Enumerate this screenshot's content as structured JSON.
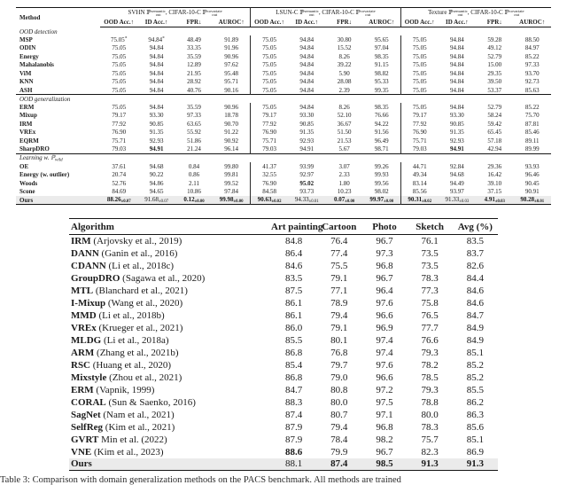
{
  "table1": {
    "method_header": "Method",
    "math": {
      "symbol": "ℙ",
      "sub": "out",
      "sup_semantic": "semantic",
      "sup_covariate": "covariate",
      "connector": ", CIFAR-10-C"
    },
    "groups": [
      {
        "name": "SVHN"
      },
      {
        "name": "LSUN-C"
      },
      {
        "name": "Texture"
      }
    ],
    "subheaders": [
      "OOD Acc.↑",
      "ID Acc.↑",
      "FPR↓",
      "AUROC↑"
    ],
    "sections": [
      {
        "label": "OOD detection",
        "rows": [
          {
            "m": "MSP",
            "v": [
              "75.05*",
              "94.84*",
              "48.49",
              "91.89",
              "75.05",
              "94.84",
              "30.80",
              "95.65",
              "75.05",
              "94.84",
              "59.28",
              "88.50"
            ]
          },
          {
            "m": "ODIN",
            "v": [
              "75.05",
              "94.84",
              "33.35",
              "91.96",
              "75.05",
              "94.84",
              "15.52",
              "97.04",
              "75.05",
              "94.84",
              "49.12",
              "84.97"
            ]
          },
          {
            "m": "Energy",
            "v": [
              "75.05",
              "94.84",
              "35.59",
              "90.96",
              "75.05",
              "94.84",
              "8.26",
              "98.35",
              "75.05",
              "94.84",
              "52.79",
              "85.22"
            ]
          },
          {
            "m": "Mahalanobis",
            "v": [
              "75.05",
              "94.84",
              "12.89",
              "97.62",
              "75.05",
              "94.84",
              "39.22",
              "91.15",
              "75.05",
              "94.84",
              "15.00",
              "97.33"
            ]
          },
          {
            "m": "ViM",
            "v": [
              "75.05",
              "94.84",
              "21.95",
              "95.48",
              "75.05",
              "94.84",
              "5.90",
              "98.82",
              "75.05",
              "94.84",
              "29.35",
              "93.70"
            ]
          },
          {
            "m": "KNN",
            "v": [
              "75.05",
              "94.84",
              "28.92",
              "95.71",
              "75.05",
              "94.84",
              "28.08",
              "95.33",
              "75.05",
              "94.84",
              "39.50",
              "92.73"
            ]
          },
          {
            "m": "ASH",
            "v": [
              "75.05",
              "94.84",
              "40.76",
              "90.16",
              "75.05",
              "94.84",
              "2.39",
              "99.35",
              "75.05",
              "94.84",
              "53.37",
              "85.63"
            ]
          }
        ]
      },
      {
        "label": "OOD generalization",
        "rows": [
          {
            "m": "ERM",
            "v": [
              "75.05",
              "94.84",
              "35.59",
              "90.96",
              "75.05",
              "94.84",
              "8.26",
              "98.35",
              "75.05",
              "94.84",
              "52.79",
              "85.22"
            ]
          },
          {
            "m": "Mixup",
            "v": [
              "79.17",
              "93.30",
              "97.33",
              "18.78",
              "79.17",
              "93.30",
              "52.10",
              "76.66",
              "79.17",
              "93.30",
              "58.24",
              "75.70"
            ]
          },
          {
            "m": "IRM",
            "v": [
              "77.92",
              "90.85",
              "63.65",
              "90.70",
              "77.92",
              "90.85",
              "36.67",
              "94.22",
              "77.92",
              "90.85",
              "59.42",
              "87.81"
            ]
          },
          {
            "m": "VREx",
            "v": [
              "76.90",
              "91.35",
              "55.92",
              "91.22",
              "76.90",
              "91.35",
              "51.50",
              "91.56",
              "76.90",
              "91.35",
              "65.45",
              "85.46"
            ]
          },
          {
            "m": "EQRM",
            "v": [
              "75.71",
              "92.93",
              "51.86",
              "90.92",
              "75.71",
              "92.93",
              "21.53",
              "96.49",
              "75.71",
              "92.93",
              "57.18",
              "89.11"
            ]
          },
          {
            "m": "SharpDRO",
            "v": [
              "79.03",
              "!94.91",
              "21.24",
              "96.14",
              "79.03",
              "94.91",
              "5.67",
              "98.71",
              "79.03",
              "!94.91",
              "42.94",
              "89.99"
            ]
          }
        ]
      },
      {
        "label": "Learning w. ℙ",
        "label_sub": "wild",
        "rows": [
          {
            "m": "OE",
            "v": [
              "37.61",
              "94.68",
              "0.84",
              "99.80",
              "41.37",
              "93.99",
              "3.07",
              "99.26",
              "44.71",
              "92.84",
              "29.36",
              "93.93"
            ]
          },
          {
            "m": "Energy (w. outlier)",
            "v": [
              "20.74",
              "90.22",
              "0.86",
              "99.81",
              "32.55",
              "92.97",
              "2.33",
              "99.93",
              "49.34",
              "94.68",
              "16.42",
              "96.46"
            ]
          },
          {
            "m": "Woods",
            "v": [
              "52.76",
              "94.86",
              "2.11",
              "99.52",
              "76.90",
              "!95.02",
              "1.80",
              "99.56",
              "83.14",
              "94.49",
              "39.10",
              "90.45"
            ]
          },
          {
            "m": "Scone",
            "v": [
              "84.69",
              "94.65",
              "10.86",
              "97.84",
              "84.58",
              "93.73",
              "10.23",
              "98.02",
              "85.56",
              "93.97",
              "37.15",
              "90.91"
            ]
          }
        ]
      }
    ],
    "ours": {
      "m": "Ours",
      "v": [
        "!88.26±0.07",
        "91.68±0.07",
        "!0.12±0.00",
        "!99.98±0.00",
        "!90.63±0.02",
        "94.33±0.01",
        "!0.07±0.00",
        "!99.97±0.00",
        "!90.31±0.02",
        "91.33±0.03",
        "!4.91±0.03",
        "!98.28±0.01"
      ]
    }
  },
  "table2": {
    "headers": [
      "Algorithm",
      "Art painting",
      "Cartoon",
      "Photo",
      "Sketch",
      "Avg (%)"
    ],
    "rows": [
      {
        "name": "IRM",
        "cite": "(Arjovsky et al., 2019)",
        "v": [
          "84.8",
          "76.4",
          "96.7",
          "76.1",
          "83.5"
        ]
      },
      {
        "name": "DANN",
        "cite": "(Ganin et al., 2016)",
        "v": [
          "86.4",
          "77.4",
          "97.3",
          "73.5",
          "83.7"
        ]
      },
      {
        "name": "CDANN",
        "cite": "(Li et al., 2018c)",
        "v": [
          "84.6",
          "75.5",
          "96.8",
          "73.5",
          "82.6"
        ]
      },
      {
        "name": "GroupDRO",
        "cite": "(Sagawa et al., 2020)",
        "v": [
          "83.5",
          "79.1",
          "96.7",
          "78.3",
          "84.4"
        ]
      },
      {
        "name": "MTL",
        "cite": "(Blanchard et al., 2021)",
        "v": [
          "87.5",
          "77.1",
          "96.4",
          "77.3",
          "84.6"
        ]
      },
      {
        "name": "I-Mixup",
        "cite": "(Wang et al., 2020)",
        "v": [
          "86.1",
          "78.9",
          "97.6",
          "75.8",
          "84.6"
        ]
      },
      {
        "name": "MMD",
        "cite": "(Li et al., 2018b)",
        "v": [
          "86.1",
          "79.4",
          "96.6",
          "76.5",
          "84.7"
        ]
      },
      {
        "name": "VREx",
        "cite": "(Krueger et al., 2021)",
        "v": [
          "86.0",
          "79.1",
          "96.9",
          "77.7",
          "84.9"
        ]
      },
      {
        "name": "MLDG",
        "cite": "(Li et al., 2018a)",
        "v": [
          "85.5",
          "80.1",
          "97.4",
          "76.6",
          "84.9"
        ]
      },
      {
        "name": "ARM",
        "cite": "(Zhang et al., 2021b)",
        "v": [
          "86.8",
          "76.8",
          "97.4",
          "79.3",
          "85.1"
        ]
      },
      {
        "name": "RSC",
        "cite": "(Huang et al., 2020)",
        "v": [
          "85.4",
          "79.7",
          "97.6",
          "78.2",
          "85.2"
        ]
      },
      {
        "name": "Mixstyle",
        "cite": "(Zhou et al., 2021)",
        "v": [
          "86.8",
          "79.0",
          "96.6",
          "78.5",
          "85.2"
        ]
      },
      {
        "name": "ERM",
        "cite": "(Vapnik, 1999)",
        "v": [
          "84.7",
          "80.8",
          "97.2",
          "79.3",
          "85.5"
        ]
      },
      {
        "name": "CORAL",
        "cite": "(Sun & Saenko, 2016)",
        "v": [
          "88.3",
          "80.0",
          "97.5",
          "78.8",
          "86.2"
        ]
      },
      {
        "name": "SagNet",
        "cite": "(Nam et al., 2021)",
        "v": [
          "87.4",
          "80.7",
          "97.1",
          "80.0",
          "86.3"
        ]
      },
      {
        "name": "SelfReg",
        "cite": "(Kim et al., 2021)",
        "v": [
          "87.9",
          "79.4",
          "96.8",
          "78.3",
          "85.6"
        ]
      },
      {
        "name": "GVRT",
        "cite": "Min et al. (2022)",
        "v": [
          "87.9",
          "78.4",
          "98.2",
          "75.7",
          "85.1"
        ]
      },
      {
        "name": "VNE",
        "cite": "(Kim et al., 2023)",
        "v": [
          "!88.6",
          "79.9",
          "96.7",
          "82.3",
          "86.9"
        ]
      }
    ],
    "ours": {
      "name": "Ours",
      "cite": "",
      "v": [
        "88.1",
        "!87.4",
        "!98.5",
        "!91.3",
        "!91.3"
      ]
    }
  },
  "caption": "Table 3: Comparison with domain generalization methods on the PACS benchmark. All methods are trained"
}
